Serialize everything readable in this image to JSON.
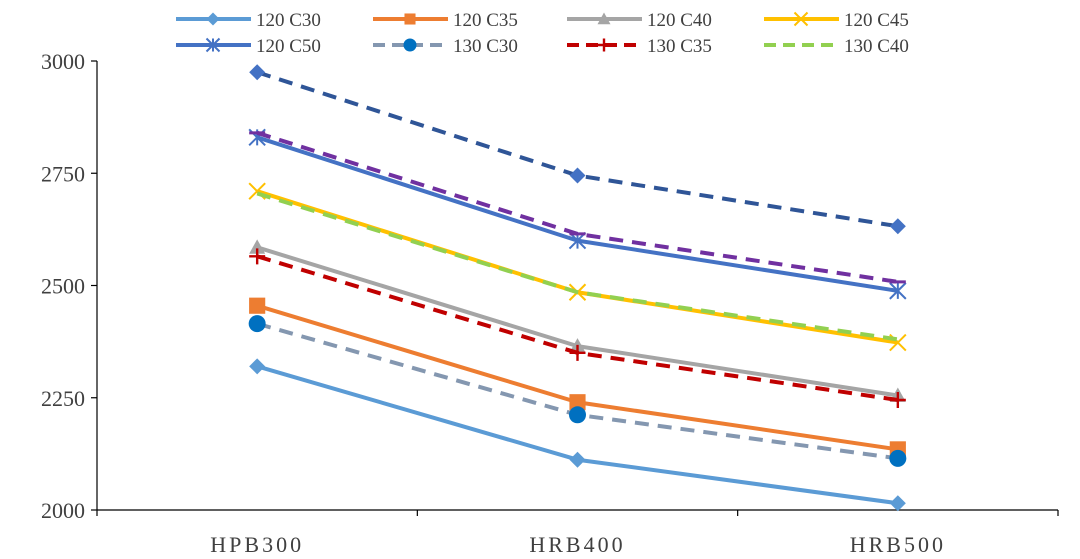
{
  "chart_data": {
    "type": "line",
    "title": "",
    "xlabel": "",
    "ylabel": "",
    "categories": [
      "HPB300",
      "HRB400",
      "HRB500"
    ],
    "ylim": [
      2000,
      3000
    ],
    "yticks": [
      2000,
      2250,
      2500,
      2750,
      3000
    ],
    "grid": false,
    "legend_position": "top",
    "series": [
      {
        "name": "120 C30",
        "values": [
          2320,
          2112,
          2015
        ],
        "color": "#5b9bd5",
        "dash": "solid",
        "marker": "diamond"
      },
      {
        "name": "120 C35",
        "values": [
          2455,
          2240,
          2135
        ],
        "color": "#ed7d31",
        "dash": "solid",
        "marker": "square"
      },
      {
        "name": "120 C40",
        "values": [
          2585,
          2365,
          2255
        ],
        "color": "#a5a5a5",
        "dash": "solid",
        "marker": "triangle"
      },
      {
        "name": "120 C45",
        "values": [
          2710,
          2485,
          2373
        ],
        "color": "#ffc000",
        "dash": "solid",
        "marker": "x"
      },
      {
        "name": "120 C50",
        "values": [
          2830,
          2600,
          2488
        ],
        "color": "#4472c4",
        "dash": "solid",
        "marker": "star"
      },
      {
        "name": "130 C30",
        "values": [
          2415,
          2212,
          2115
        ],
        "color": "#8497b0",
        "dash": "dash",
        "marker": "circle",
        "marker_color": "#0070c0"
      },
      {
        "name": "130 C35",
        "values": [
          2565,
          2350,
          2245
        ],
        "color": "#c00000",
        "dash": "dash",
        "marker": "plus"
      },
      {
        "name": "130 C40",
        "values": [
          2705,
          2485,
          2380
        ],
        "color": "#92d050",
        "dash": "dash",
        "marker": "none"
      },
      {
        "name": "",
        "values": [
          2840,
          2615,
          2508
        ],
        "color": "#7030a0",
        "dash": "dash",
        "marker": "dash"
      },
      {
        "name": "",
        "values": [
          2975,
          2745,
          2632
        ],
        "color": "#2f5597",
        "dash": "dash",
        "marker": "diamond",
        "marker_color": "#4472c4"
      }
    ]
  }
}
